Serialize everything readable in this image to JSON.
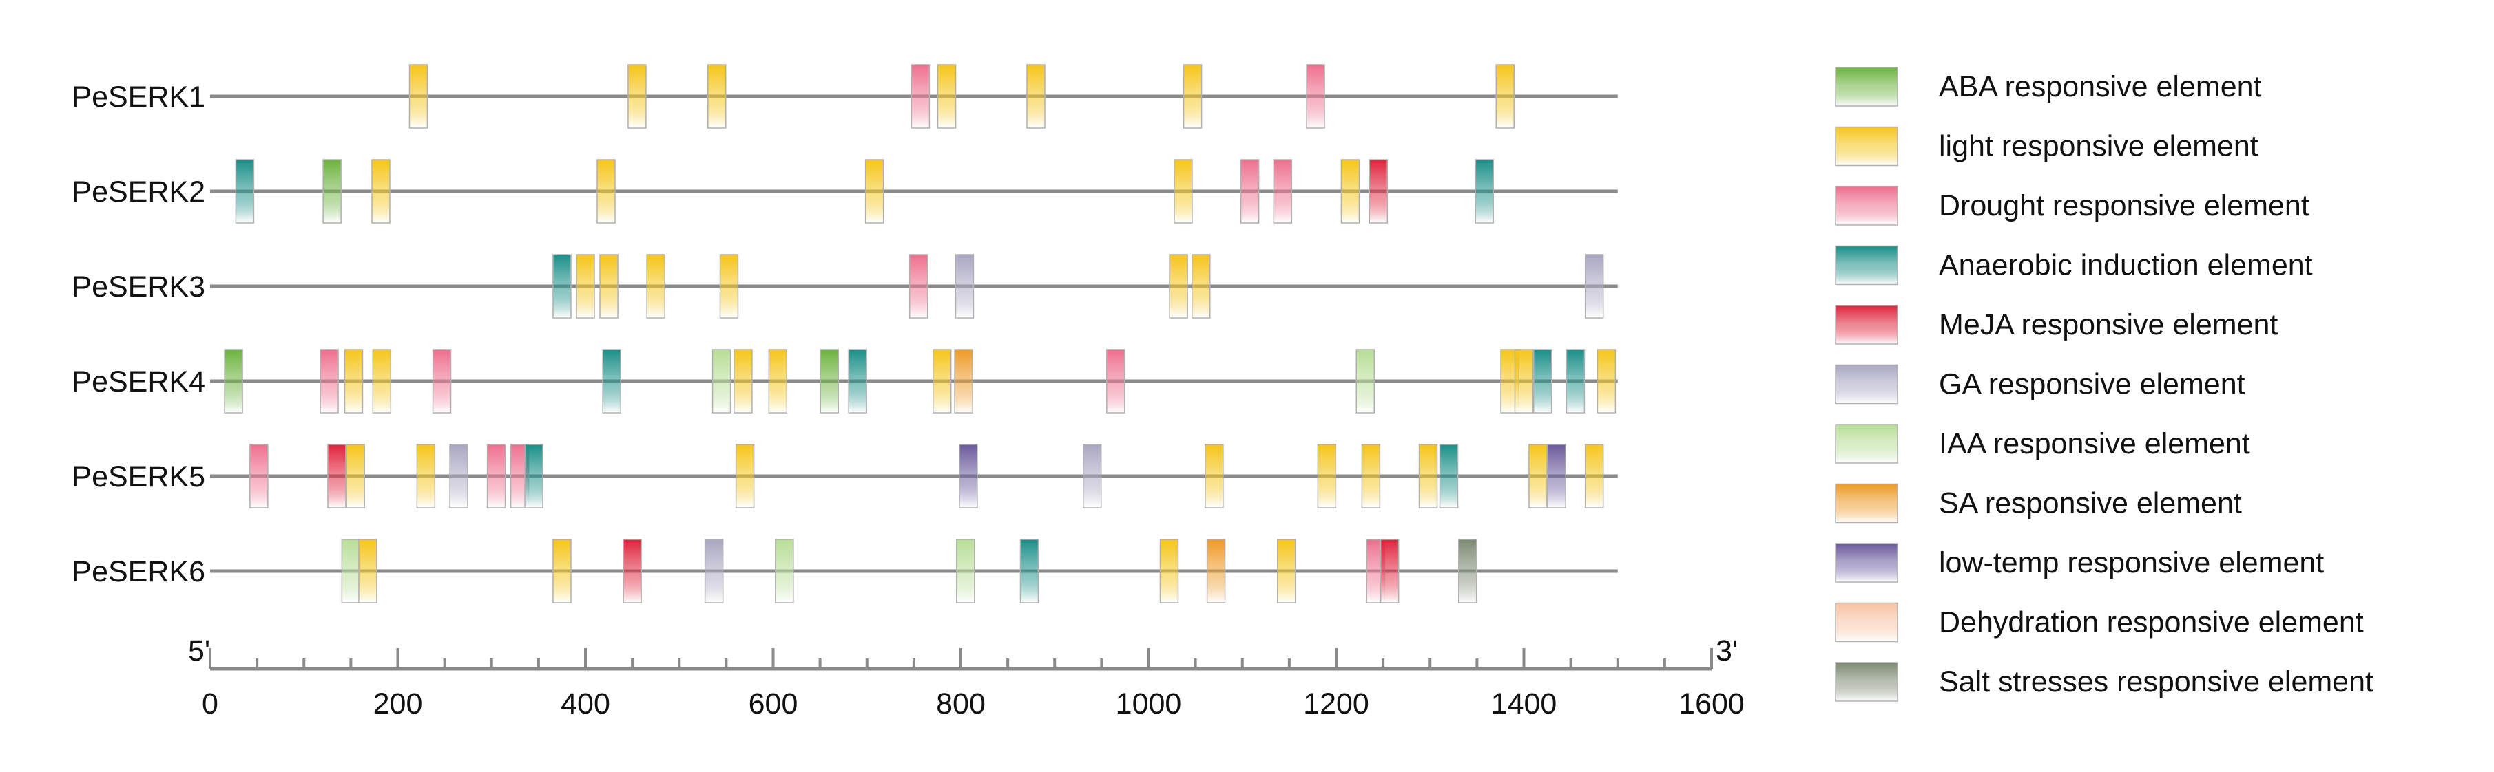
{
  "chart_data": {
    "type": "gene promoter cis-element map",
    "x_axis": {
      "min": 0,
      "max": 1600,
      "ticks": [
        0,
        200,
        400,
        600,
        800,
        1000,
        1200,
        1400,
        1600
      ],
      "start_label": "5'",
      "end_label": "3'"
    },
    "legend": [
      {
        "key": "aba",
        "label": "ABA responsive element",
        "color": "#6cb33e"
      },
      {
        "key": "light",
        "label": "light responsive element",
        "color": "#f5c518"
      },
      {
        "key": "drought",
        "label": "Drought responsive element",
        "color": "#ee6f8e"
      },
      {
        "key": "anaerobic",
        "label": "Anaerobic induction element",
        "color": "#1a8f88"
      },
      {
        "key": "meja",
        "label": "MeJA responsive element",
        "color": "#e0243c"
      },
      {
        "key": "ga",
        "label": "GA responsive element",
        "color": "#a9a6c2"
      },
      {
        "key": "iaa",
        "label": "IAA responsive element",
        "color": "#b7dd95"
      },
      {
        "key": "sa",
        "label": "SA responsive element",
        "color": "#ee9a27"
      },
      {
        "key": "lowtemp",
        "label": "low-temp responsive element",
        "color": "#6b5a9e"
      },
      {
        "key": "dehydration",
        "label": "Dehydration responsive element",
        "color": "#f8c2a2"
      },
      {
        "key": "salt",
        "label": "Salt stresses responsive element",
        "color": "#7e8a74"
      }
    ],
    "genes": [
      {
        "name": "PeSERK1",
        "length": 1500,
        "elements": [
          {
            "pos": 222,
            "type": "light"
          },
          {
            "pos": 455,
            "type": "light"
          },
          {
            "pos": 540,
            "type": "light"
          },
          {
            "pos": 757,
            "type": "drought"
          },
          {
            "pos": 785,
            "type": "light"
          },
          {
            "pos": 880,
            "type": "light"
          },
          {
            "pos": 1047,
            "type": "light"
          },
          {
            "pos": 1178,
            "type": "drought"
          },
          {
            "pos": 1380,
            "type": "light"
          }
        ]
      },
      {
        "name": "PeSERK2",
        "length": 1500,
        "elements": [
          {
            "pos": 37,
            "type": "anaerobic"
          },
          {
            "pos": 130,
            "type": "aba"
          },
          {
            "pos": 182,
            "type": "light"
          },
          {
            "pos": 422,
            "type": "light"
          },
          {
            "pos": 708,
            "type": "light"
          },
          {
            "pos": 1037,
            "type": "light"
          },
          {
            "pos": 1108,
            "type": "drought"
          },
          {
            "pos": 1143,
            "type": "drought"
          },
          {
            "pos": 1215,
            "type": "light"
          },
          {
            "pos": 1245,
            "type": "meja"
          },
          {
            "pos": 1358,
            "type": "anaerobic"
          }
        ]
      },
      {
        "name": "PeSERK3",
        "length": 1500,
        "elements": [
          {
            "pos": 375,
            "type": "anaerobic"
          },
          {
            "pos": 400,
            "type": "light"
          },
          {
            "pos": 425,
            "type": "light"
          },
          {
            "pos": 475,
            "type": "light"
          },
          {
            "pos": 553,
            "type": "light"
          },
          {
            "pos": 755,
            "type": "drought"
          },
          {
            "pos": 804,
            "type": "ga"
          },
          {
            "pos": 1032,
            "type": "light"
          },
          {
            "pos": 1056,
            "type": "light"
          },
          {
            "pos": 1475,
            "type": "ga"
          }
        ]
      },
      {
        "name": "PeSERK4",
        "length": 1500,
        "elements": [
          {
            "pos": 25,
            "type": "aba"
          },
          {
            "pos": 127,
            "type": "drought"
          },
          {
            "pos": 153,
            "type": "light"
          },
          {
            "pos": 183,
            "type": "light"
          },
          {
            "pos": 247,
            "type": "drought"
          },
          {
            "pos": 428,
            "type": "anaerobic"
          },
          {
            "pos": 545,
            "type": "iaa"
          },
          {
            "pos": 568,
            "type": "light"
          },
          {
            "pos": 605,
            "type": "light"
          },
          {
            "pos": 660,
            "type": "aba"
          },
          {
            "pos": 690,
            "type": "anaerobic"
          },
          {
            "pos": 780,
            "type": "light"
          },
          {
            "pos": 803,
            "type": "sa"
          },
          {
            "pos": 965,
            "type": "drought"
          },
          {
            "pos": 1231,
            "type": "iaa"
          },
          {
            "pos": 1385,
            "type": "light"
          },
          {
            "pos": 1400,
            "type": "light"
          },
          {
            "pos": 1420,
            "type": "anaerobic"
          },
          {
            "pos": 1455,
            "type": "anaerobic"
          },
          {
            "pos": 1488,
            "type": "light"
          }
        ]
      },
      {
        "name": "PeSERK5",
        "length": 1500,
        "elements": [
          {
            "pos": 52,
            "type": "drought"
          },
          {
            "pos": 135,
            "type": "meja"
          },
          {
            "pos": 155,
            "type": "light"
          },
          {
            "pos": 230,
            "type": "light"
          },
          {
            "pos": 265,
            "type": "ga"
          },
          {
            "pos": 305,
            "type": "drought"
          },
          {
            "pos": 330,
            "type": "drought"
          },
          {
            "pos": 345,
            "type": "anaerobic"
          },
          {
            "pos": 570,
            "type": "light"
          },
          {
            "pos": 808,
            "type": "lowtemp"
          },
          {
            "pos": 940,
            "type": "ga"
          },
          {
            "pos": 1070,
            "type": "light"
          },
          {
            "pos": 1190,
            "type": "light"
          },
          {
            "pos": 1237,
            "type": "light"
          },
          {
            "pos": 1298,
            "type": "light"
          },
          {
            "pos": 1320,
            "type": "anaerobic"
          },
          {
            "pos": 1415,
            "type": "light"
          },
          {
            "pos": 1435,
            "type": "lowtemp"
          },
          {
            "pos": 1475,
            "type": "light"
          }
        ]
      },
      {
        "name": "PeSERK6",
        "length": 1500,
        "elements": [
          {
            "pos": 150,
            "type": "iaa"
          },
          {
            "pos": 168,
            "type": "light"
          },
          {
            "pos": 375,
            "type": "light"
          },
          {
            "pos": 450,
            "type": "meja"
          },
          {
            "pos": 537,
            "type": "ga"
          },
          {
            "pos": 612,
            "type": "iaa"
          },
          {
            "pos": 805,
            "type": "iaa"
          },
          {
            "pos": 873,
            "type": "anaerobic"
          },
          {
            "pos": 1022,
            "type": "light"
          },
          {
            "pos": 1072,
            "type": "sa"
          },
          {
            "pos": 1147,
            "type": "light"
          },
          {
            "pos": 1242,
            "type": "drought"
          },
          {
            "pos": 1257,
            "type": "meja"
          },
          {
            "pos": 1340,
            "type": "salt"
          }
        ]
      }
    ]
  }
}
